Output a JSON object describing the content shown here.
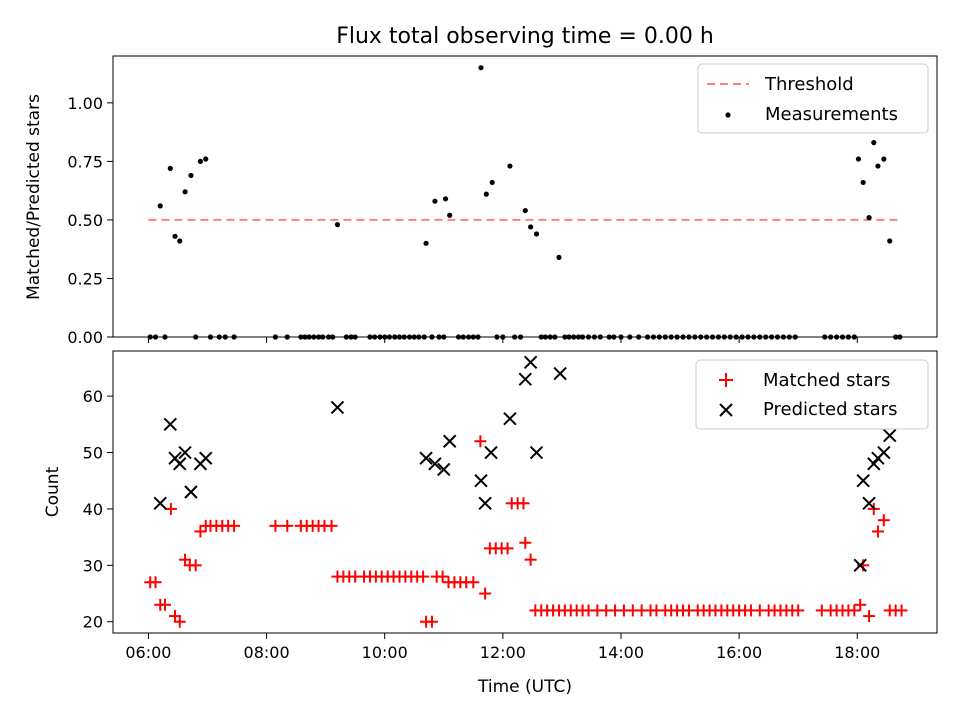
{
  "figure": {
    "title": "Flux total observing time = 0.00 h",
    "xlabel": "Time (UTC)"
  },
  "chart_data": [
    {
      "type": "scatter",
      "panel": "top",
      "ylabel": "Matched/Predicted stars",
      "xlim_hours": [
        5.4,
        19.35
      ],
      "ylim": [
        0.0,
        1.2
      ],
      "yticks": [
        "0.00",
        "0.25",
        "0.50",
        "0.75",
        "1.00"
      ],
      "ytick_values": [
        0.0,
        0.25,
        0.5,
        0.75,
        1.0
      ],
      "legend_position": "top-right",
      "threshold": {
        "name": "Threshold",
        "value": 0.5,
        "x_range_hours": [
          6.0,
          18.7
        ],
        "color": "#ff7f7f"
      },
      "series": [
        {
          "name": "Measurements",
          "color": "#000000",
          "points": [
            [
              6.2,
              0.56
            ],
            [
              6.37,
              0.72
            ],
            [
              6.45,
              0.43
            ],
            [
              6.53,
              0.41
            ],
            [
              6.62,
              0.62
            ],
            [
              6.72,
              0.69
            ],
            [
              6.88,
              0.75
            ],
            [
              6.97,
              0.76
            ],
            [
              9.2,
              0.48
            ],
            [
              10.7,
              0.4
            ],
            [
              10.85,
              0.58
            ],
            [
              11.03,
              0.59
            ],
            [
              11.1,
              0.52
            ],
            [
              11.63,
              1.15
            ],
            [
              11.72,
              0.61
            ],
            [
              11.82,
              0.66
            ],
            [
              12.12,
              0.73
            ],
            [
              12.38,
              0.54
            ],
            [
              12.47,
              0.47
            ],
            [
              12.57,
              0.44
            ],
            [
              12.95,
              0.34
            ],
            [
              18.02,
              0.76
            ],
            [
              18.1,
              0.66
            ],
            [
              18.2,
              0.51
            ],
            [
              18.28,
              0.83
            ],
            [
              18.35,
              0.73
            ],
            [
              18.45,
              0.76
            ],
            [
              18.55,
              0.41
            ],
            [
              6.03,
              0.0
            ],
            [
              6.12,
              0.0
            ],
            [
              6.28,
              0.0
            ],
            [
              6.8,
              0.0
            ],
            [
              7.05,
              0.0
            ],
            [
              7.2,
              0.0
            ],
            [
              7.3,
              0.0
            ],
            [
              7.45,
              0.0
            ],
            [
              8.15,
              0.0
            ],
            [
              8.35,
              0.0
            ],
            [
              8.58,
              0.0
            ],
            [
              8.65,
              0.0
            ],
            [
              8.72,
              0.0
            ],
            [
              8.8,
              0.0
            ],
            [
              8.88,
              0.0
            ],
            [
              8.95,
              0.0
            ],
            [
              9.05,
              0.0
            ],
            [
              9.12,
              0.0
            ],
            [
              9.35,
              0.0
            ],
            [
              9.43,
              0.0
            ],
            [
              9.5,
              0.0
            ],
            [
              9.75,
              0.0
            ],
            [
              9.83,
              0.0
            ],
            [
              9.92,
              0.0
            ],
            [
              10.0,
              0.0
            ],
            [
              10.08,
              0.0
            ],
            [
              10.17,
              0.0
            ],
            [
              10.25,
              0.0
            ],
            [
              10.33,
              0.0
            ],
            [
              10.42,
              0.0
            ],
            [
              10.5,
              0.0
            ],
            [
              10.58,
              0.0
            ],
            [
              10.67,
              0.0
            ],
            [
              10.8,
              0.0
            ],
            [
              10.92,
              0.0
            ],
            [
              11.0,
              0.0
            ],
            [
              11.25,
              0.0
            ],
            [
              11.33,
              0.0
            ],
            [
              11.42,
              0.0
            ],
            [
              11.5,
              0.0
            ],
            [
              11.58,
              0.0
            ],
            [
              11.9,
              0.0
            ],
            [
              12.0,
              0.0
            ],
            [
              12.2,
              0.0
            ],
            [
              12.3,
              0.0
            ],
            [
              12.65,
              0.0
            ],
            [
              12.72,
              0.0
            ],
            [
              12.8,
              0.0
            ],
            [
              12.88,
              0.0
            ],
            [
              13.05,
              0.0
            ],
            [
              13.12,
              0.0
            ],
            [
              13.2,
              0.0
            ],
            [
              13.28,
              0.0
            ],
            [
              13.35,
              0.0
            ],
            [
              13.45,
              0.0
            ],
            [
              13.55,
              0.0
            ],
            [
              13.65,
              0.0
            ],
            [
              13.8,
              0.0
            ],
            [
              13.88,
              0.0
            ],
            [
              14.0,
              0.0
            ],
            [
              14.15,
              0.0
            ],
            [
              14.3,
              0.0
            ],
            [
              14.45,
              0.0
            ],
            [
              14.55,
              0.0
            ],
            [
              14.65,
              0.0
            ],
            [
              14.75,
              0.0
            ],
            [
              14.85,
              0.0
            ],
            [
              14.95,
              0.0
            ],
            [
              15.05,
              0.0
            ],
            [
              15.15,
              0.0
            ],
            [
              15.25,
              0.0
            ],
            [
              15.35,
              0.0
            ],
            [
              15.45,
              0.0
            ],
            [
              15.55,
              0.0
            ],
            [
              15.65,
              0.0
            ],
            [
              15.75,
              0.0
            ],
            [
              15.85,
              0.0
            ],
            [
              15.95,
              0.0
            ],
            [
              16.05,
              0.0
            ],
            [
              16.15,
              0.0
            ],
            [
              16.25,
              0.0
            ],
            [
              16.35,
              0.0
            ],
            [
              16.45,
              0.0
            ],
            [
              16.55,
              0.0
            ],
            [
              16.65,
              0.0
            ],
            [
              16.75,
              0.0
            ],
            [
              16.85,
              0.0
            ],
            [
              16.95,
              0.0
            ],
            [
              17.45,
              0.0
            ],
            [
              17.55,
              0.0
            ],
            [
              17.65,
              0.0
            ],
            [
              17.75,
              0.0
            ],
            [
              17.85,
              0.0
            ],
            [
              17.95,
              0.0
            ],
            [
              18.65,
              0.0
            ],
            [
              18.72,
              0.0
            ]
          ]
        }
      ]
    },
    {
      "type": "scatter",
      "panel": "bottom",
      "ylabel": "Count",
      "xlabel": "Time (UTC)",
      "xlim_hours": [
        5.4,
        19.35
      ],
      "ylim": [
        18,
        68
      ],
      "yticks": [
        "20",
        "30",
        "40",
        "50",
        "60"
      ],
      "ytick_values": [
        20,
        30,
        40,
        50,
        60
      ],
      "xticks": [
        "06:00",
        "08:00",
        "10:00",
        "12:00",
        "14:00",
        "16:00",
        "18:00"
      ],
      "xtick_values_hours": [
        6,
        8,
        10,
        12,
        14,
        16,
        18
      ],
      "legend_position": "top-right",
      "series": [
        {
          "name": "Matched stars",
          "marker": "+",
          "color": "#ff0000",
          "points": [
            [
              6.03,
              27
            ],
            [
              6.12,
              27
            ],
            [
              6.2,
              23
            ],
            [
              6.28,
              23
            ],
            [
              6.38,
              40
            ],
            [
              6.45,
              21
            ],
            [
              6.53,
              20
            ],
            [
              6.62,
              31
            ],
            [
              6.7,
              30
            ],
            [
              6.8,
              30
            ],
            [
              6.88,
              36
            ],
            [
              6.97,
              37
            ],
            [
              7.05,
              37
            ],
            [
              7.15,
              37
            ],
            [
              7.25,
              37
            ],
            [
              7.35,
              37
            ],
            [
              7.45,
              37
            ],
            [
              8.15,
              37
            ],
            [
              8.35,
              37
            ],
            [
              8.58,
              37
            ],
            [
              8.68,
              37
            ],
            [
              8.78,
              37
            ],
            [
              8.88,
              37
            ],
            [
              8.98,
              37
            ],
            [
              9.1,
              37
            ],
            [
              9.2,
              28
            ],
            [
              9.3,
              28
            ],
            [
              9.4,
              28
            ],
            [
              9.5,
              28
            ],
            [
              9.65,
              28
            ],
            [
              9.75,
              28
            ],
            [
              9.85,
              28
            ],
            [
              9.95,
              28
            ],
            [
              10.05,
              28
            ],
            [
              10.15,
              28
            ],
            [
              10.25,
              28
            ],
            [
              10.35,
              28
            ],
            [
              10.45,
              28
            ],
            [
              10.55,
              28
            ],
            [
              10.65,
              28
            ],
            [
              10.7,
              20
            ],
            [
              10.8,
              20
            ],
            [
              10.88,
              28
            ],
            [
              10.98,
              28
            ],
            [
              11.08,
              27
            ],
            [
              11.18,
              27
            ],
            [
              11.28,
              27
            ],
            [
              11.38,
              27
            ],
            [
              11.5,
              27
            ],
            [
              11.62,
              52
            ],
            [
              11.7,
              25
            ],
            [
              11.78,
              33
            ],
            [
              11.88,
              33
            ],
            [
              11.98,
              33
            ],
            [
              12.08,
              33
            ],
            [
              12.15,
              41
            ],
            [
              12.25,
              41
            ],
            [
              12.35,
              41
            ],
            [
              12.38,
              34
            ],
            [
              12.47,
              31
            ],
            [
              12.55,
              22
            ],
            [
              12.65,
              22
            ],
            [
              12.75,
              22
            ],
            [
              12.85,
              22
            ],
            [
              12.95,
              22
            ],
            [
              13.05,
              22
            ],
            [
              13.15,
              22
            ],
            [
              13.25,
              22
            ],
            [
              13.35,
              22
            ],
            [
              13.45,
              22
            ],
            [
              13.6,
              22
            ],
            [
              13.75,
              22
            ],
            [
              13.9,
              22
            ],
            [
              14.05,
              22
            ],
            [
              14.2,
              22
            ],
            [
              14.35,
              22
            ],
            [
              14.5,
              22
            ],
            [
              14.6,
              22
            ],
            [
              14.75,
              22
            ],
            [
              14.85,
              22
            ],
            [
              14.95,
              22
            ],
            [
              15.05,
              22
            ],
            [
              15.15,
              22
            ],
            [
              15.3,
              22
            ],
            [
              15.4,
              22
            ],
            [
              15.5,
              22
            ],
            [
              15.6,
              22
            ],
            [
              15.7,
              22
            ],
            [
              15.8,
              22
            ],
            [
              15.9,
              22
            ],
            [
              16.0,
              22
            ],
            [
              16.1,
              22
            ],
            [
              16.2,
              22
            ],
            [
              16.35,
              22
            ],
            [
              16.5,
              22
            ],
            [
              16.6,
              22
            ],
            [
              16.7,
              22
            ],
            [
              16.8,
              22
            ],
            [
              16.9,
              22
            ],
            [
              17.0,
              22
            ],
            [
              17.4,
              22
            ],
            [
              17.55,
              22
            ],
            [
              17.65,
              22
            ],
            [
              17.75,
              22
            ],
            [
              17.85,
              22
            ],
            [
              17.95,
              22
            ],
            [
              18.05,
              23
            ],
            [
              18.1,
              30
            ],
            [
              18.2,
              21
            ],
            [
              18.28,
              40
            ],
            [
              18.35,
              36
            ],
            [
              18.45,
              38
            ],
            [
              18.55,
              22
            ],
            [
              18.65,
              22
            ],
            [
              18.75,
              22
            ]
          ]
        },
        {
          "name": "Predicted stars",
          "marker": "x",
          "color": "#000000",
          "points": [
            [
              6.2,
              41
            ],
            [
              6.37,
              55
            ],
            [
              6.45,
              49
            ],
            [
              6.53,
              48
            ],
            [
              6.62,
              50
            ],
            [
              6.72,
              43
            ],
            [
              6.88,
              48
            ],
            [
              6.97,
              49
            ],
            [
              9.2,
              58
            ],
            [
              10.7,
              49
            ],
            [
              10.85,
              48
            ],
            [
              11.0,
              47
            ],
            [
              11.1,
              52
            ],
            [
              11.63,
              45
            ],
            [
              11.7,
              41
            ],
            [
              11.8,
              50
            ],
            [
              12.12,
              56
            ],
            [
              12.38,
              63
            ],
            [
              12.47,
              66
            ],
            [
              12.57,
              50
            ],
            [
              12.97,
              64
            ],
            [
              18.05,
              30
            ],
            [
              18.1,
              45
            ],
            [
              18.2,
              41
            ],
            [
              18.28,
              48
            ],
            [
              18.35,
              49
            ],
            [
              18.45,
              50
            ],
            [
              18.55,
              53
            ]
          ]
        }
      ]
    }
  ]
}
